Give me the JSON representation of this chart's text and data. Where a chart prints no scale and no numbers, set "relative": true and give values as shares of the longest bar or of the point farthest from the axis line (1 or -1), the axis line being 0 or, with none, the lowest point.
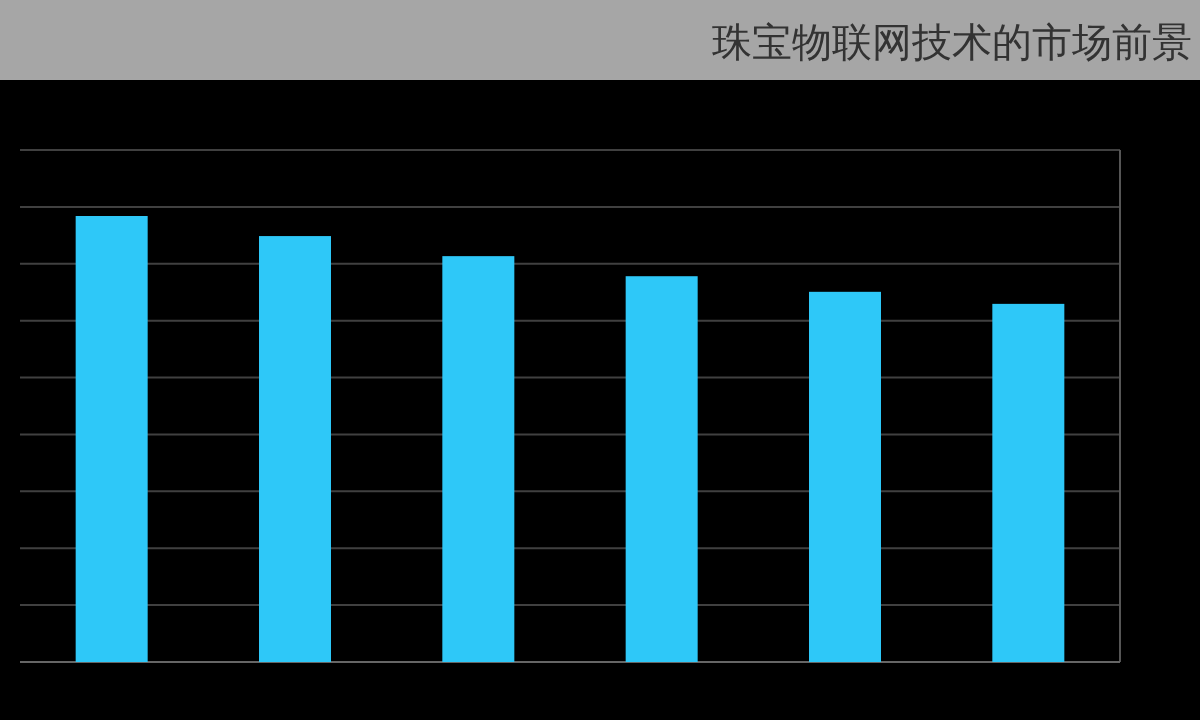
{
  "chart_data": {
    "type": "bar",
    "title": "珠宝物联网技术的市场前景",
    "categories": [
      null,
      null,
      null,
      null,
      null,
      null
    ],
    "values": [
      1,
      0.955,
      0.91,
      0.865,
      0.83,
      0.803
    ],
    "color": "#2ec8f8",
    "relative": true,
    "grid": "y"
  }
}
